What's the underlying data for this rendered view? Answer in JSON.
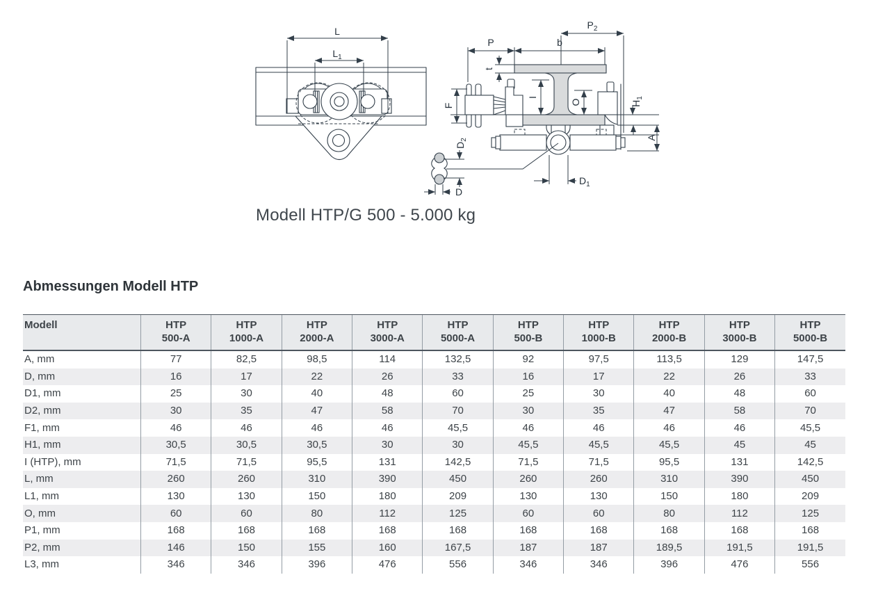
{
  "figure": {
    "caption": "Modell HTP/G 500 - 5.000 kg",
    "front_labels": {
      "L": {
        "base": "L",
        "sub": ""
      },
      "L1": {
        "base": "L",
        "sub": "1"
      }
    },
    "section_labels": {
      "P2": {
        "base": "P",
        "sub": "2"
      },
      "P": {
        "base": "P",
        "sub": ""
      },
      "b": {
        "base": "b",
        "sub": ""
      },
      "t": {
        "base": "t",
        "sub": ""
      },
      "F": {
        "base": "F",
        "sub": ""
      },
      "I": {
        "base": "I",
        "sub": ""
      },
      "O": {
        "base": "O",
        "sub": ""
      },
      "H1": {
        "base": "H",
        "sub": "1"
      },
      "A": {
        "base": "A",
        "sub": ""
      },
      "D2": {
        "base": "D",
        "sub": "2"
      },
      "D": {
        "base": "D",
        "sub": ""
      },
      "D1": {
        "base": "D",
        "sub": "1"
      }
    }
  },
  "section": {
    "title": "Abmessungen Modell HTP"
  },
  "table": {
    "corner_label": "Modell",
    "columns": [
      {
        "line1": "HTP",
        "line2": "500-A"
      },
      {
        "line1": "HTP",
        "line2": "1000-A"
      },
      {
        "line1": "HTP",
        "line2": "2000-A"
      },
      {
        "line1": "HTP",
        "line2": "3000-A"
      },
      {
        "line1": "HTP",
        "line2": "5000-A"
      },
      {
        "line1": "HTP",
        "line2": "500-B"
      },
      {
        "line1": "HTP",
        "line2": "1000-B"
      },
      {
        "line1": "HTP",
        "line2": "2000-B"
      },
      {
        "line1": "HTP",
        "line2": "3000-B"
      },
      {
        "line1": "HTP",
        "line2": "5000-B"
      }
    ],
    "rows": [
      {
        "label": "A, mm",
        "values": [
          "77",
          "82,5",
          "98,5",
          "114",
          "132,5",
          "92",
          "97,5",
          "113,5",
          "129",
          "147,5"
        ]
      },
      {
        "label": "D, mm",
        "values": [
          "16",
          "17",
          "22",
          "26",
          "33",
          "16",
          "17",
          "22",
          "26",
          "33"
        ]
      },
      {
        "label": "D1, mm",
        "values": [
          "25",
          "30",
          "40",
          "48",
          "60",
          "25",
          "30",
          "40",
          "48",
          "60"
        ]
      },
      {
        "label": "D2, mm",
        "values": [
          "30",
          "35",
          "47",
          "58",
          "70",
          "30",
          "35",
          "47",
          "58",
          "70"
        ]
      },
      {
        "label": "F1, mm",
        "values": [
          "46",
          "46",
          "46",
          "46",
          "45,5",
          "46",
          "46",
          "46",
          "46",
          "45,5"
        ]
      },
      {
        "label": "H1, mm",
        "values": [
          "30,5",
          "30,5",
          "30,5",
          "30",
          "30",
          "45,5",
          "45,5",
          "45,5",
          "45",
          "45"
        ]
      },
      {
        "label": "I (HTP), mm",
        "values": [
          "71,5",
          "71,5",
          "95,5",
          "131",
          "142,5",
          "71,5",
          "71,5",
          "95,5",
          "131",
          "142,5"
        ]
      },
      {
        "label": "L, mm",
        "values": [
          "260",
          "260",
          "310",
          "390",
          "450",
          "260",
          "260",
          "310",
          "390",
          "450"
        ]
      },
      {
        "label": "L1, mm",
        "values": [
          "130",
          "130",
          "150",
          "180",
          "209",
          "130",
          "130",
          "150",
          "180",
          "209"
        ]
      },
      {
        "label": "O, mm",
        "values": [
          "60",
          "60",
          "80",
          "112",
          "125",
          "60",
          "60",
          "80",
          "112",
          "125"
        ]
      },
      {
        "label": "P1, mm",
        "values": [
          "168",
          "168",
          "168",
          "168",
          "168",
          "168",
          "168",
          "168",
          "168",
          "168"
        ]
      },
      {
        "label": "P2, mm",
        "values": [
          "146",
          "150",
          "155",
          "160",
          "167,5",
          "187",
          "187",
          "189,5",
          "191,5",
          "191,5"
        ]
      },
      {
        "label": "L3, mm",
        "values": [
          "346",
          "346",
          "396",
          "476",
          "556",
          "346",
          "346",
          "396",
          "476",
          "556"
        ]
      }
    ]
  },
  "colors": {
    "drawing_line": "#333f4a",
    "beam_fill": "#d9dbdc",
    "table_header_bg": "#e8eaec",
    "table_stripe_bg": "#ededef",
    "table_rule": "#4d565e",
    "text": "#3d4348"
  }
}
